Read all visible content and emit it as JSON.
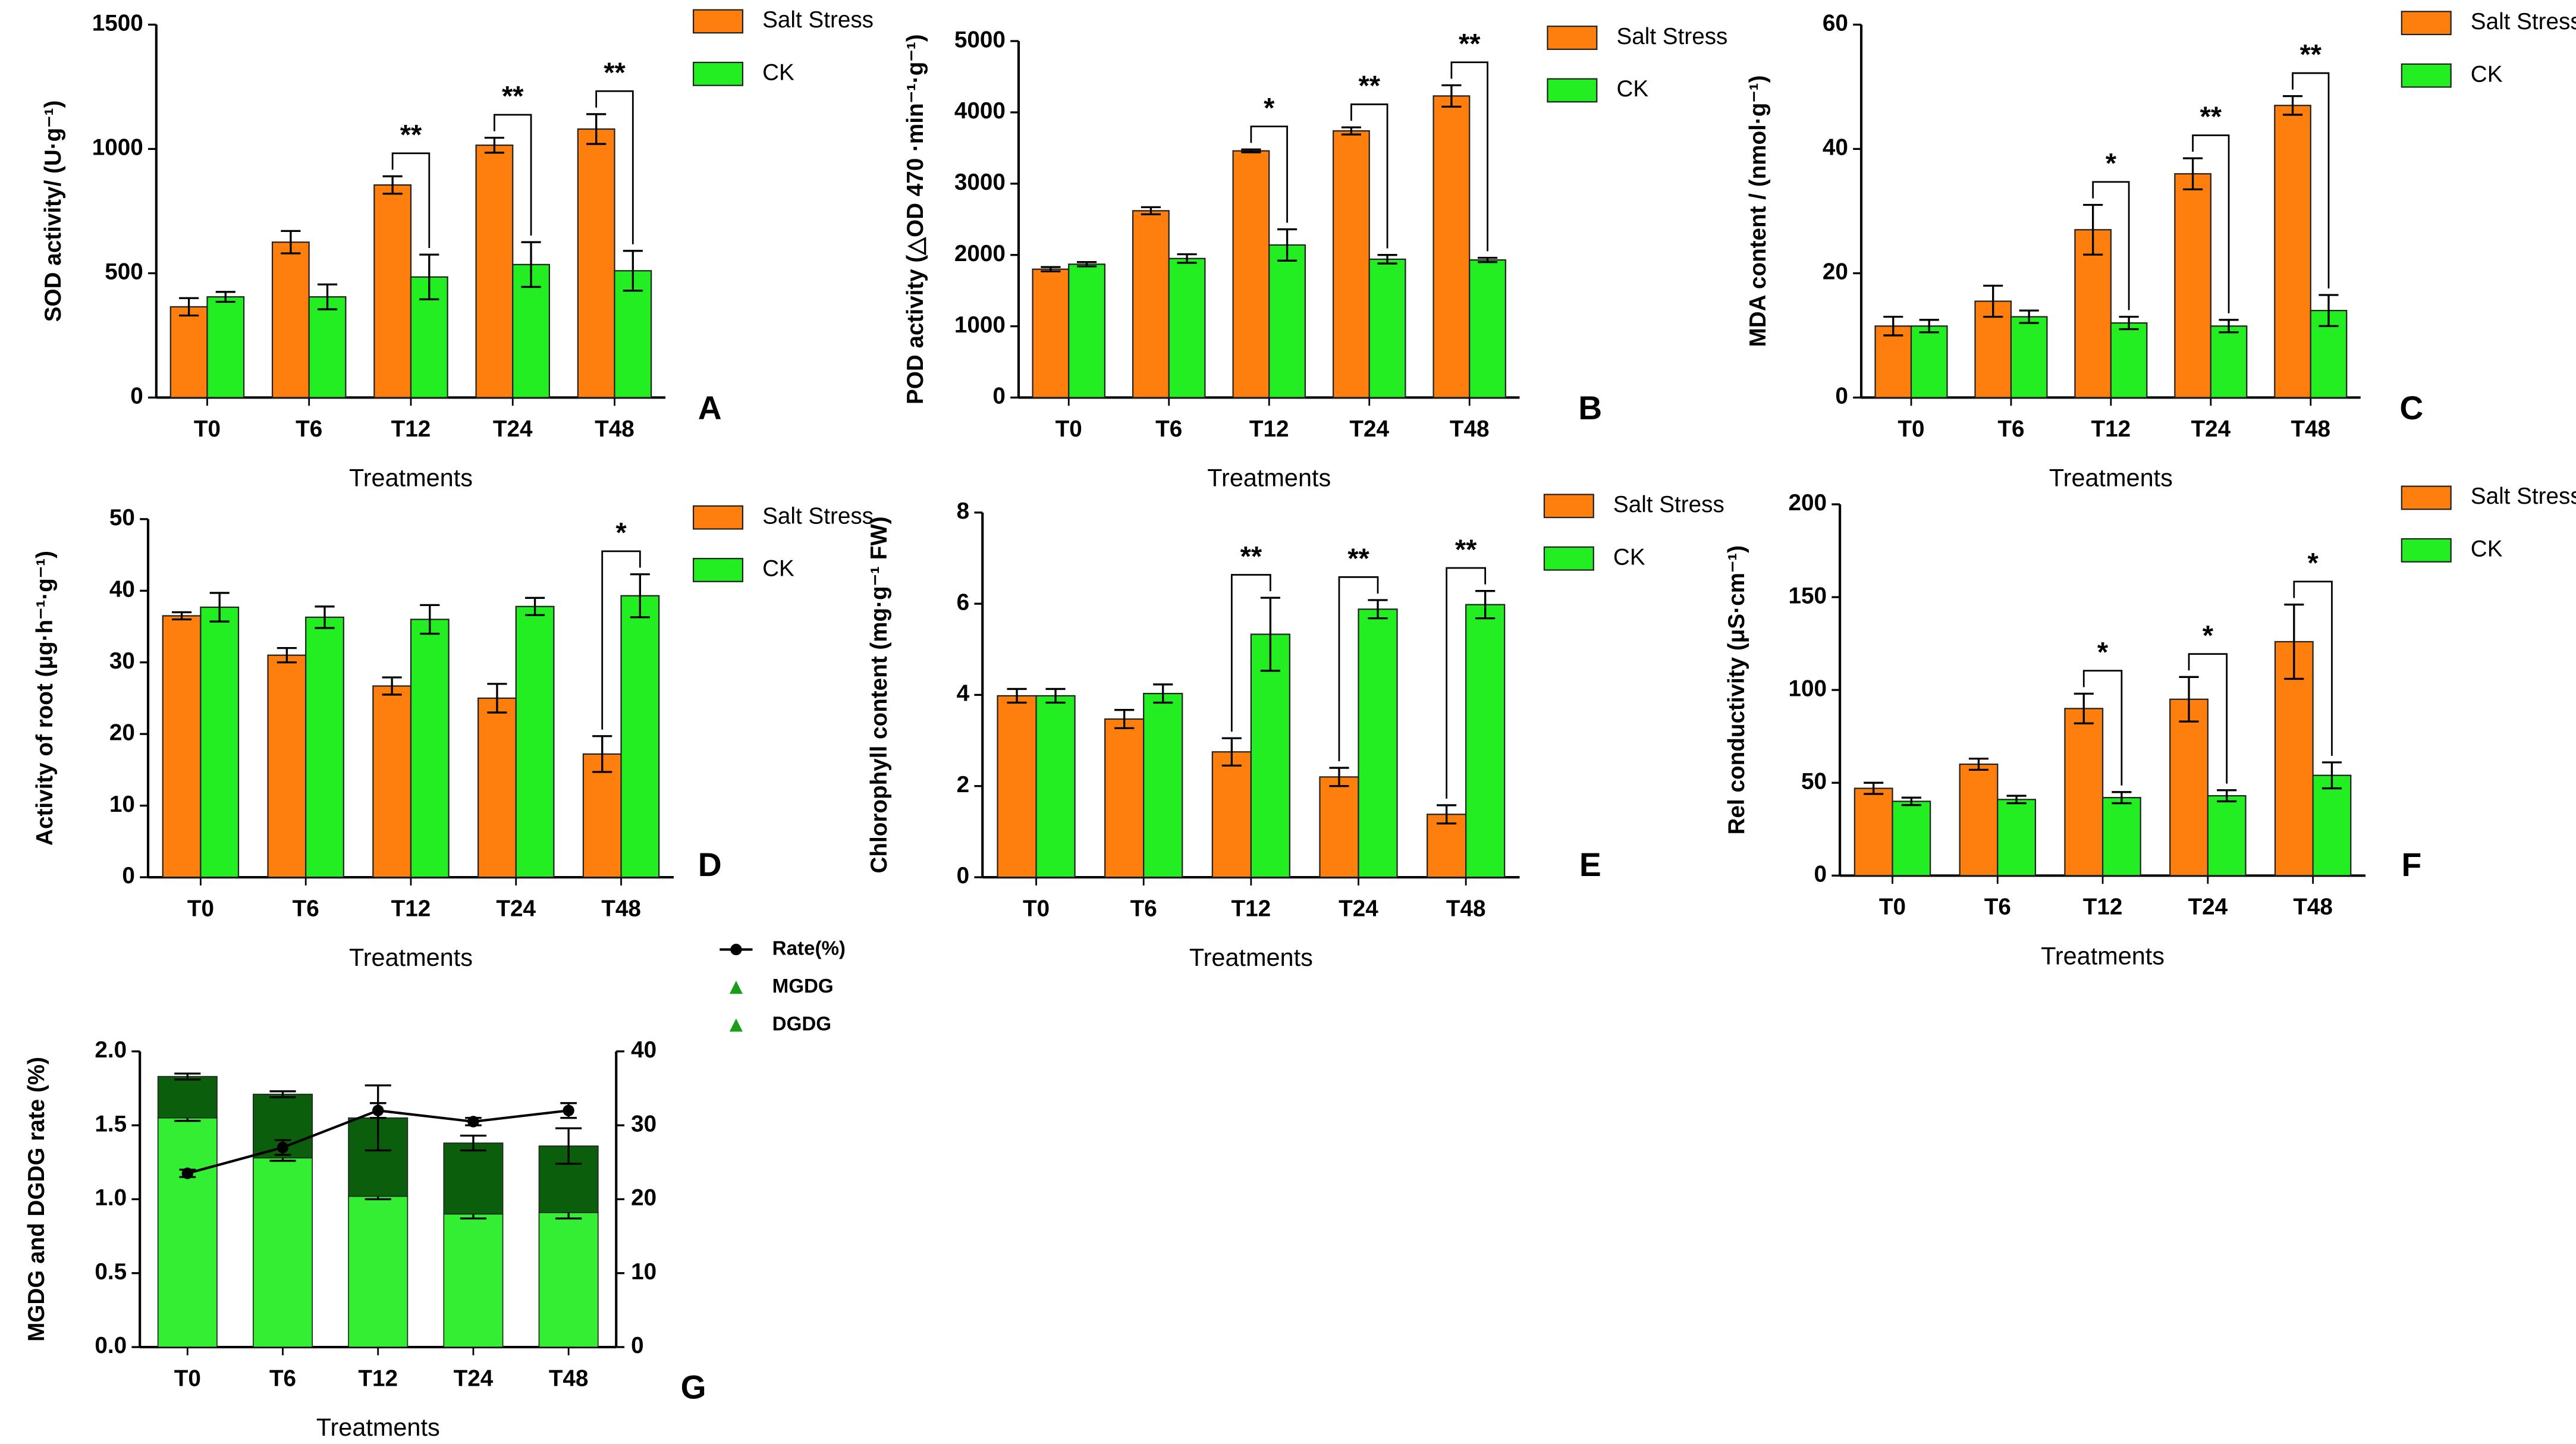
{
  "chart_data": [
    {
      "type": "bar",
      "panel_label": "A",
      "x_label": "Treatments",
      "y_label": "SOD activity/  (U·g⁻¹)",
      "categories": [
        "T0",
        "T6",
        "T12",
        "T24",
        "T48"
      ],
      "ylim": [
        0,
        1500
      ],
      "yticks": [
        0,
        500,
        1000,
        1500
      ],
      "series": [
        {
          "name": "Salt Stress",
          "color": "#ff7f0e",
          "values": [
            365,
            625,
            855,
            1015,
            1080
          ],
          "errors": [
            35,
            45,
            35,
            30,
            60
          ]
        },
        {
          "name": "CK",
          "color": "#22ee22",
          "values": [
            405,
            405,
            485,
            535,
            510
          ],
          "errors": [
            20,
            50,
            90,
            90,
            80
          ]
        }
      ],
      "significance": [
        null,
        null,
        "**",
        "**",
        "**"
      ]
    },
    {
      "type": "bar",
      "panel_label": "B",
      "x_label": "Treatments",
      "y_label": "POD activity (△OD 470 ·min⁻¹·g⁻¹)",
      "categories": [
        "T0",
        "T6",
        "T12",
        "T24",
        "T48"
      ],
      "ylim": [
        0,
        5000
      ],
      "yticks": [
        0,
        1000,
        2000,
        3000,
        4000,
        5000
      ],
      "series": [
        {
          "name": "Salt Stress",
          "color": "#ff7f0e",
          "values": [
            1800,
            2620,
            3460,
            3740,
            4230
          ],
          "errors": [
            30,
            50,
            20,
            50,
            150
          ]
        },
        {
          "name": "CK",
          "color": "#22ee22",
          "values": [
            1870,
            1950,
            2140,
            1940,
            1930
          ],
          "errors": [
            30,
            60,
            220,
            60,
            30
          ]
        }
      ],
      "significance": [
        null,
        null,
        "*",
        "**",
        "**"
      ]
    },
    {
      "type": "bar",
      "panel_label": "C",
      "x_label": "Treatments",
      "y_label": "MDA content /  (nmol·g⁻¹)",
      "categories": [
        "T0",
        "T6",
        "T12",
        "T24",
        "T48"
      ],
      "ylim": [
        0,
        60
      ],
      "yticks": [
        0,
        20,
        40,
        60
      ],
      "series": [
        {
          "name": "Salt Stress",
          "color": "#ff7f0e",
          "values": [
            11.5,
            15.5,
            27,
            36,
            47
          ],
          "errors": [
            1.5,
            2.5,
            4,
            2.5,
            1.5
          ]
        },
        {
          "name": "CK",
          "color": "#22ee22",
          "values": [
            11.5,
            13,
            12,
            11.5,
            14
          ],
          "errors": [
            1,
            1,
            1,
            1,
            2.5
          ]
        }
      ],
      "significance": [
        null,
        null,
        "*",
        "**",
        "**"
      ]
    },
    {
      "type": "bar",
      "panel_label": "D",
      "x_label": "Treatments",
      "y_label": "Activity of root (μg·h⁻¹·g⁻¹)",
      "categories": [
        "T0",
        "T6",
        "T12",
        "T24",
        "T48"
      ],
      "ylim": [
        0,
        50
      ],
      "yticks": [
        0,
        10,
        20,
        30,
        40,
        50
      ],
      "series": [
        {
          "name": "Salt Stress",
          "color": "#ff7f0e",
          "values": [
            36.5,
            31,
            26.7,
            25,
            17.2
          ],
          "errors": [
            0.5,
            1,
            1.2,
            2,
            2.5
          ]
        },
        {
          "name": "CK",
          "color": "#22ee22",
          "values": [
            37.7,
            36.3,
            36,
            37.8,
            39.3
          ],
          "errors": [
            2,
            1.5,
            2,
            1.2,
            3
          ]
        }
      ],
      "significance": [
        null,
        null,
        null,
        null,
        "*"
      ]
    },
    {
      "type": "bar",
      "panel_label": "E",
      "x_label": "Treatments",
      "y_label": "Chlorophyll content (mg·g⁻¹ FW)",
      "categories": [
        "T0",
        "T6",
        "T12",
        "T24",
        "T48"
      ],
      "ylim": [
        0,
        8
      ],
      "yticks": [
        0,
        2,
        4,
        6,
        8
      ],
      "series": [
        {
          "name": "Salt Stress",
          "color": "#ff7f0e",
          "values": [
            3.98,
            3.47,
            2.75,
            2.2,
            1.38
          ],
          "errors": [
            0.15,
            0.2,
            0.3,
            0.2,
            0.2
          ]
        },
        {
          "name": "CK",
          "color": "#22ee22",
          "values": [
            3.98,
            4.03,
            5.33,
            5.88,
            5.98
          ],
          "errors": [
            0.15,
            0.2,
            0.8,
            0.2,
            0.3
          ]
        }
      ],
      "significance": [
        null,
        null,
        "**",
        "**",
        "**"
      ]
    },
    {
      "type": "bar",
      "panel_label": "F",
      "x_label": "Treatments",
      "y_label": "Rel conductivity (μS·cm⁻¹)",
      "categories": [
        "T0",
        "T6",
        "T12",
        "T24",
        "T48"
      ],
      "ylim": [
        0,
        200
      ],
      "yticks": [
        0,
        50,
        100,
        150,
        200
      ],
      "series": [
        {
          "name": "Salt Stress",
          "color": "#ff7f0e",
          "values": [
            47,
            60,
            90,
            95,
            126
          ],
          "errors": [
            3,
            3,
            8,
            12,
            20
          ]
        },
        {
          "name": "CK",
          "color": "#22ee22",
          "values": [
            40,
            41,
            42,
            43,
            54
          ],
          "errors": [
            2,
            2,
            3,
            3,
            7
          ]
        }
      ],
      "significance": [
        null,
        null,
        "*",
        "*",
        "*"
      ]
    },
    {
      "type": "stacked_bar_line",
      "panel_label": "G",
      "x_label": "Treatments",
      "y_label": "MGDG and DGDG rate (%)",
      "categories": [
        "T0",
        "T6",
        "T12",
        "T24",
        "T48"
      ],
      "ylim": [
        0,
        2
      ],
      "yticks": [
        {
          "value": 0,
          "label": "0.0"
        },
        0.5,
        {
          "value": 1,
          "label": "1.0"
        },
        1.5,
        {
          "value": 2,
          "label": "2.0"
        }
      ],
      "y2lim": [
        0,
        40
      ],
      "y2ticks": [
        0,
        10,
        20,
        30,
        40
      ],
      "series": [
        {
          "name": "Rate(%)",
          "type": "line",
          "axis": "y2",
          "color": "#000000",
          "values": [
            23.5,
            27,
            32,
            30.5,
            32
          ],
          "errors": [
            0.5,
            1,
            1,
            0.5,
            1
          ]
        },
        {
          "name": "MGDG",
          "color": "#33ee33",
          "values": [
            1.55,
            1.28,
            1.02,
            0.9,
            0.91
          ],
          "errors": [
            0.02,
            0.02,
            0.02,
            0.03,
            0.04
          ]
        },
        {
          "name": "DGDG",
          "color": "#0b5e0b",
          "values": [
            0.28,
            0.43,
            0.53,
            0.48,
            0.45
          ],
          "errors": [
            0.02,
            0.02,
            0.22,
            0.05,
            0.12
          ]
        }
      ]
    }
  ]
}
